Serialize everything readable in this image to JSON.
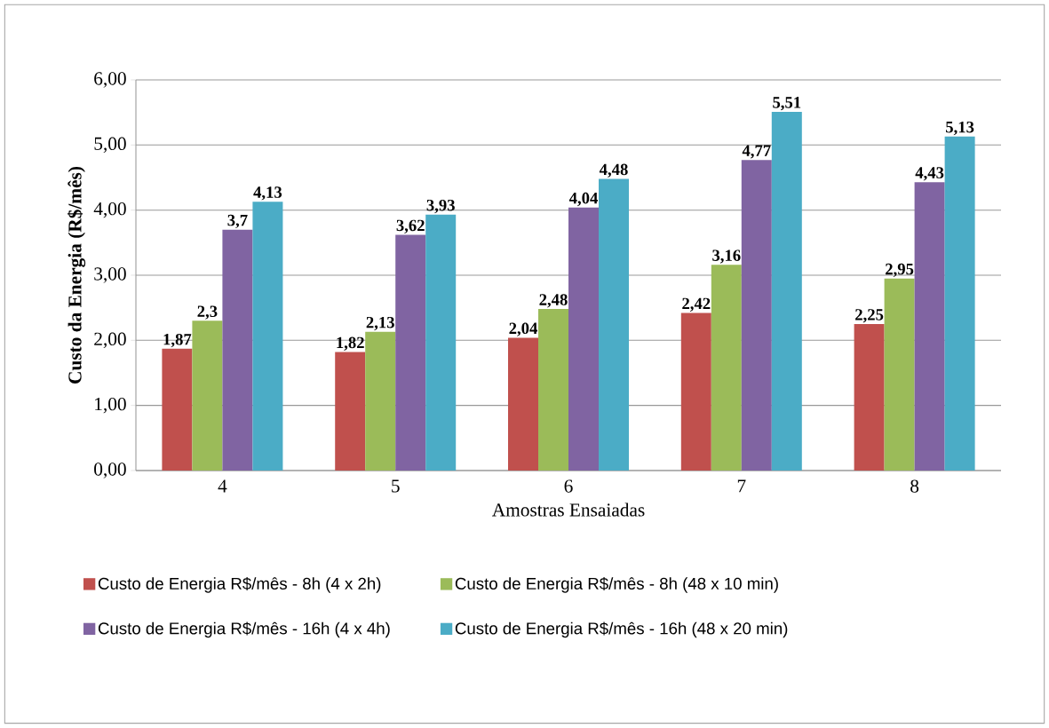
{
  "chart_data": {
    "type": "bar",
    "xlabel": "Amostras Ensaiadas",
    "ylabel": "Custo da Energia (R$/mês)",
    "categories": [
      "4",
      "5",
      "6",
      "7",
      "8"
    ],
    "series": [
      {
        "name": "Custo de Energia R$/mês - 8h (4 x 2h)",
        "color": "#c0504d",
        "values": [
          1.87,
          1.82,
          2.04,
          2.42,
          2.25
        ],
        "value_labels": [
          "1,87",
          "1,82",
          "2,04",
          "2,42",
          "2,25"
        ]
      },
      {
        "name": "Custo de Energia R$/mês - 8h (48 x 10 min)",
        "color": "#9bbb59",
        "values": [
          2.3,
          2.13,
          2.48,
          3.16,
          2.95
        ],
        "value_labels": [
          "2,3",
          "2,13",
          "2,48",
          "3,16",
          "2,95"
        ]
      },
      {
        "name": "Custo de Energia R$/mês - 16h (4 x 4h)",
        "color": "#8064a2",
        "values": [
          3.7,
          3.62,
          4.04,
          4.77,
          4.43
        ],
        "value_labels": [
          "3,7",
          "3,62",
          "4,04",
          "4,77",
          "4,43"
        ]
      },
      {
        "name": "Custo de Energia R$/mês - 16h (48 x 20 min)",
        "color": "#4bacc6",
        "values": [
          4.13,
          3.93,
          4.48,
          5.51,
          5.13
        ],
        "value_labels": [
          "4,13",
          "3,93",
          "4,48",
          "5,51",
          "5,13"
        ]
      }
    ],
    "ylim": [
      0,
      6
    ],
    "yticks": [
      {
        "value": 0,
        "label": "0,00"
      },
      {
        "value": 1,
        "label": "1,00"
      },
      {
        "value": 2,
        "label": "2,00"
      },
      {
        "value": 3,
        "label": "3,00"
      },
      {
        "value": 4,
        "label": "4,00"
      },
      {
        "value": 5,
        "label": "5,00"
      },
      {
        "value": 6,
        "label": "6,00"
      }
    ],
    "grid": "y",
    "legend": "bottom"
  }
}
